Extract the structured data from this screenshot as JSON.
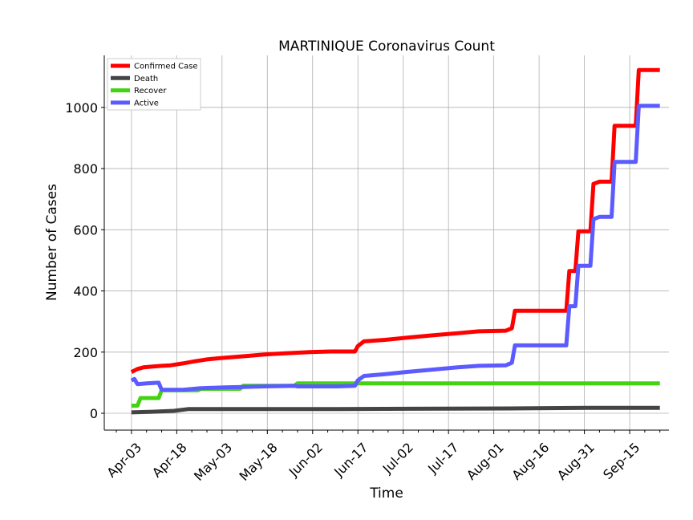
{
  "chart_data": {
    "type": "line",
    "title": "MARTINIQUE Coronavirus Count",
    "xlabel": "Time",
    "ylabel": "Number of Cases",
    "x_ticks": [
      "Apr-03",
      "Apr-18",
      "May-03",
      "May-18",
      "Jun-02",
      "Jun-17",
      "Jul-02",
      "Jul-17",
      "Aug-01",
      "Aug-16",
      "Aug-31",
      "Sep-15"
    ],
    "y_ticks": [
      0,
      200,
      400,
      600,
      800,
      1000
    ],
    "ylim": [
      -55,
      1170
    ],
    "xlim": [
      "2020-03-25",
      "2020-09-28"
    ],
    "grid": true,
    "legend_position": "top-left",
    "series": [
      {
        "name": "Confirmed Case",
        "color": "#ff0000",
        "points": [
          [
            "2020-04-03",
            135
          ],
          [
            "2020-04-05",
            145
          ],
          [
            "2020-04-07",
            150
          ],
          [
            "2020-04-10",
            153
          ],
          [
            "2020-04-13",
            155
          ],
          [
            "2020-04-16",
            157
          ],
          [
            "2020-04-20",
            163
          ],
          [
            "2020-04-24",
            170
          ],
          [
            "2020-04-28",
            176
          ],
          [
            "2020-05-02",
            180
          ],
          [
            "2020-05-07",
            184
          ],
          [
            "2020-05-12",
            188
          ],
          [
            "2020-05-17",
            192
          ],
          [
            "2020-05-24",
            196
          ],
          [
            "2020-06-01",
            200
          ],
          [
            "2020-06-08",
            202
          ],
          [
            "2020-06-16",
            202
          ],
          [
            "2020-06-17",
            220
          ],
          [
            "2020-06-19",
            235
          ],
          [
            "2020-06-26",
            240
          ],
          [
            "2020-07-04",
            248
          ],
          [
            "2020-07-12",
            255
          ],
          [
            "2020-07-20",
            262
          ],
          [
            "2020-07-27",
            268
          ],
          [
            "2020-08-05",
            270
          ],
          [
            "2020-08-07",
            278
          ],
          [
            "2020-08-08",
            335
          ],
          [
            "2020-08-16",
            335
          ],
          [
            "2020-08-25",
            335
          ],
          [
            "2020-08-26",
            465
          ],
          [
            "2020-08-28",
            465
          ],
          [
            "2020-08-29",
            595
          ],
          [
            "2020-09-02",
            595
          ],
          [
            "2020-09-03",
            750
          ],
          [
            "2020-09-05",
            757
          ],
          [
            "2020-09-09",
            757
          ],
          [
            "2020-09-10",
            940
          ],
          [
            "2020-09-17",
            940
          ],
          [
            "2020-09-18",
            1122
          ],
          [
            "2020-09-25",
            1122
          ]
        ]
      },
      {
        "name": "Death",
        "color": "#444444",
        "points": [
          [
            "2020-04-03",
            3
          ],
          [
            "2020-04-10",
            5
          ],
          [
            "2020-04-17",
            8
          ],
          [
            "2020-04-22",
            14
          ],
          [
            "2020-06-10",
            14
          ],
          [
            "2020-07-15",
            15
          ],
          [
            "2020-08-10",
            16
          ],
          [
            "2020-09-01",
            18
          ],
          [
            "2020-09-25",
            18
          ]
        ]
      },
      {
        "name": "Recover",
        "color": "#44d213",
        "points": [
          [
            "2020-04-03",
            25
          ],
          [
            "2020-04-05",
            25
          ],
          [
            "2020-04-06",
            50
          ],
          [
            "2020-04-12",
            50
          ],
          [
            "2020-04-13",
            75
          ],
          [
            "2020-04-25",
            75
          ],
          [
            "2020-04-26",
            80
          ],
          [
            "2020-05-09",
            80
          ],
          [
            "2020-05-10",
            90
          ],
          [
            "2020-05-27",
            90
          ],
          [
            "2020-05-28",
            98
          ],
          [
            "2020-09-25",
            98
          ]
        ]
      },
      {
        "name": "Active",
        "color": "#5b5bff",
        "points": [
          [
            "2020-04-03",
            107
          ],
          [
            "2020-04-04",
            112
          ],
          [
            "2020-04-05",
            95
          ],
          [
            "2020-04-08",
            98
          ],
          [
            "2020-04-12",
            100
          ],
          [
            "2020-04-13",
            77
          ],
          [
            "2020-04-20",
            77
          ],
          [
            "2020-04-26",
            82
          ],
          [
            "2020-05-05",
            85
          ],
          [
            "2020-05-10",
            86
          ],
          [
            "2020-05-17",
            88
          ],
          [
            "2020-05-27",
            90
          ],
          [
            "2020-05-28",
            88
          ],
          [
            "2020-06-10",
            88
          ],
          [
            "2020-06-16",
            90
          ],
          [
            "2020-06-17",
            108
          ],
          [
            "2020-06-19",
            122
          ],
          [
            "2020-06-26",
            128
          ],
          [
            "2020-07-04",
            136
          ],
          [
            "2020-07-12",
            143
          ],
          [
            "2020-07-20",
            150
          ],
          [
            "2020-07-27",
            155
          ],
          [
            "2020-08-05",
            157
          ],
          [
            "2020-08-07",
            165
          ],
          [
            "2020-08-08",
            222
          ],
          [
            "2020-08-25",
            222
          ],
          [
            "2020-08-26",
            350
          ],
          [
            "2020-08-28",
            350
          ],
          [
            "2020-08-29",
            482
          ],
          [
            "2020-09-02",
            482
          ],
          [
            "2020-09-03",
            635
          ],
          [
            "2020-09-05",
            642
          ],
          [
            "2020-09-09",
            642
          ],
          [
            "2020-09-10",
            822
          ],
          [
            "2020-09-17",
            822
          ],
          [
            "2020-09-18",
            1005
          ],
          [
            "2020-09-25",
            1005
          ]
        ]
      }
    ]
  }
}
